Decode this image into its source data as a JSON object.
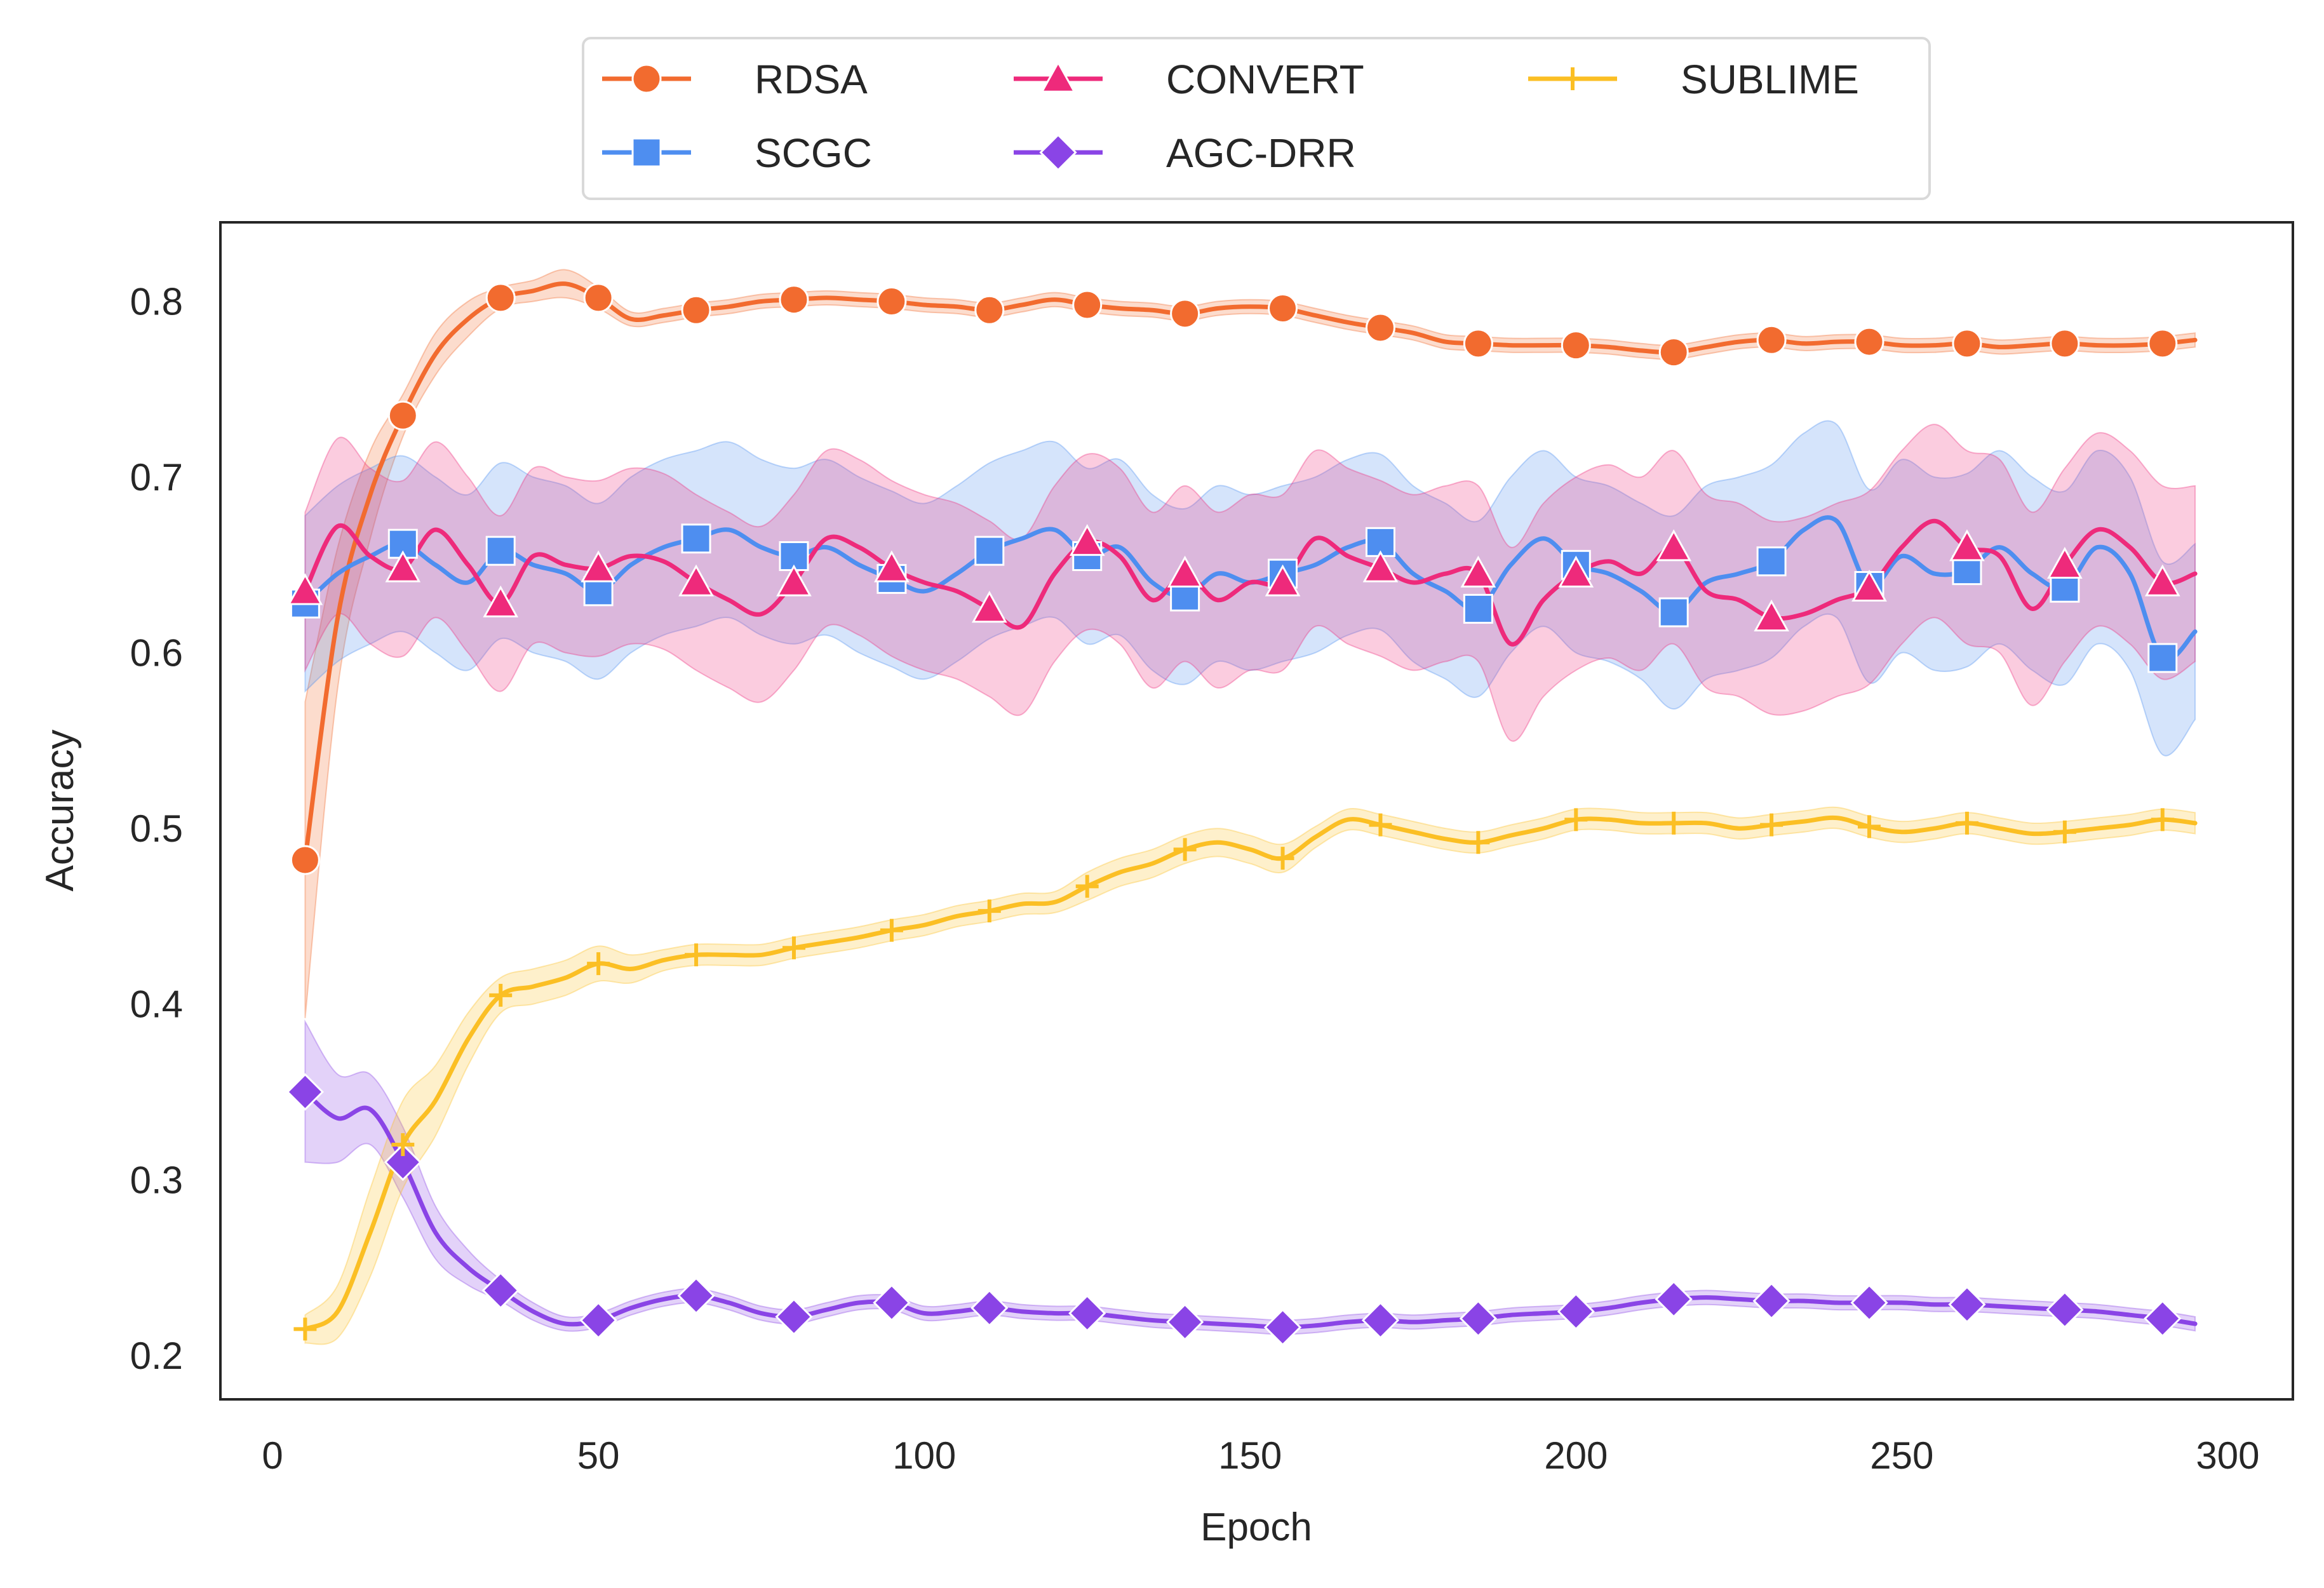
{
  "chart_data": {
    "type": "line",
    "title": "",
    "xlabel": "Epoch",
    "ylabel": "Accuracy",
    "xlim": [
      -8,
      310
    ],
    "ylim": [
      0.175,
      0.845
    ],
    "xticks": [
      0,
      50,
      100,
      150,
      200,
      250,
      300
    ],
    "yticks": [
      0.2,
      0.3,
      0.4,
      0.5,
      0.6,
      0.7,
      0.8
    ],
    "xtick_labels": [
      "0",
      "50",
      "100",
      "150",
      "200",
      "250",
      "300"
    ],
    "ytick_labels": [
      "0.2",
      "0.3",
      "0.4",
      "0.5",
      "0.6",
      "0.7",
      "0.8"
    ],
    "grid": false,
    "legend_position": "top-center-outside",
    "marker_x": [
      5,
      20,
      35,
      50,
      65,
      80,
      95,
      110,
      125,
      140,
      155,
      170,
      185,
      200,
      215,
      230,
      245,
      260,
      275,
      290
    ],
    "series": [
      {
        "name": "RDSA",
        "color": "#F26B2F",
        "marker": "circle",
        "x": [
          5,
          10,
          15,
          20,
          25,
          30,
          35,
          40,
          45,
          50,
          55,
          60,
          65,
          70,
          75,
          80,
          85,
          90,
          95,
          100,
          105,
          110,
          115,
          120,
          125,
          130,
          135,
          140,
          145,
          150,
          155,
          160,
          165,
          170,
          175,
          180,
          185,
          190,
          195,
          200,
          205,
          210,
          215,
          220,
          225,
          230,
          235,
          240,
          245,
          250,
          255,
          260,
          265,
          270,
          275,
          280,
          285,
          290,
          295
        ],
        "y": [
          0.482,
          0.62,
          0.69,
          0.735,
          0.77,
          0.79,
          0.802,
          0.806,
          0.81,
          0.802,
          0.79,
          0.792,
          0.795,
          0.797,
          0.8,
          0.801,
          0.802,
          0.801,
          0.8,
          0.798,
          0.797,
          0.795,
          0.798,
          0.801,
          0.798,
          0.796,
          0.795,
          0.793,
          0.796,
          0.797,
          0.796,
          0.792,
          0.788,
          0.785,
          0.782,
          0.777,
          0.776,
          0.775,
          0.775,
          0.775,
          0.774,
          0.772,
          0.771,
          0.774,
          0.777,
          0.778,
          0.776,
          0.777,
          0.777,
          0.775,
          0.775,
          0.776,
          0.774,
          0.775,
          0.776,
          0.775,
          0.775,
          0.776,
          0.778
        ],
        "band": [
          0.09,
          0.04,
          0.025,
          0.012,
          0.012,
          0.01,
          0.006,
          0.006,
          0.008,
          0.006,
          0.004,
          0.004,
          0.004,
          0.004,
          0.004,
          0.004,
          0.004,
          0.004,
          0.004,
          0.004,
          0.004,
          0.004,
          0.004,
          0.004,
          0.004,
          0.004,
          0.004,
          0.004,
          0.004,
          0.004,
          0.004,
          0.004,
          0.004,
          0.004,
          0.004,
          0.004,
          0.004,
          0.004,
          0.004,
          0.004,
          0.004,
          0.004,
          0.004,
          0.004,
          0.004,
          0.004,
          0.004,
          0.004,
          0.004,
          0.004,
          0.004,
          0.004,
          0.004,
          0.004,
          0.004,
          0.004,
          0.004,
          0.004,
          0.004
        ]
      },
      {
        "name": "SCGC",
        "color": "#4E8EF0",
        "marker": "square",
        "x": [
          5,
          10,
          15,
          20,
          25,
          30,
          35,
          40,
          45,
          50,
          55,
          60,
          65,
          70,
          75,
          80,
          85,
          90,
          95,
          100,
          105,
          110,
          115,
          120,
          125,
          130,
          135,
          140,
          145,
          150,
          155,
          160,
          165,
          170,
          175,
          180,
          185,
          190,
          195,
          200,
          205,
          210,
          215,
          220,
          225,
          230,
          235,
          240,
          245,
          250,
          255,
          260,
          265,
          270,
          275,
          280,
          285,
          290,
          295
        ],
        "y": [
          0.628,
          0.645,
          0.655,
          0.662,
          0.65,
          0.64,
          0.658,
          0.65,
          0.645,
          0.635,
          0.65,
          0.66,
          0.665,
          0.67,
          0.66,
          0.655,
          0.66,
          0.65,
          0.642,
          0.635,
          0.645,
          0.658,
          0.665,
          0.67,
          0.655,
          0.66,
          0.64,
          0.632,
          0.645,
          0.64,
          0.645,
          0.65,
          0.66,
          0.663,
          0.645,
          0.635,
          0.625,
          0.65,
          0.665,
          0.65,
          0.645,
          0.635,
          0.623,
          0.64,
          0.645,
          0.652,
          0.67,
          0.675,
          0.638,
          0.655,
          0.645,
          0.647,
          0.66,
          0.645,
          0.637,
          0.66,
          0.645,
          0.597,
          0.612
        ],
        "band": [
          0.05,
          0.05,
          0.05,
          0.05,
          0.05,
          0.05,
          0.05,
          0.05,
          0.05,
          0.05,
          0.05,
          0.05,
          0.05,
          0.05,
          0.05,
          0.05,
          0.05,
          0.05,
          0.05,
          0.05,
          0.05,
          0.05,
          0.05,
          0.05,
          0.05,
          0.05,
          0.05,
          0.05,
          0.05,
          0.05,
          0.05,
          0.05,
          0.05,
          0.05,
          0.05,
          0.05,
          0.05,
          0.05,
          0.05,
          0.05,
          0.05,
          0.05,
          0.055,
          0.055,
          0.055,
          0.055,
          0.055,
          0.055,
          0.055,
          0.055,
          0.055,
          0.055,
          0.055,
          0.055,
          0.055,
          0.055,
          0.055,
          0.055,
          0.05
        ]
      },
      {
        "name": "CONVERT",
        "color": "#EE2A7B",
        "marker": "triangle",
        "x": [
          5,
          10,
          15,
          20,
          25,
          30,
          35,
          40,
          45,
          50,
          55,
          60,
          65,
          70,
          75,
          80,
          85,
          90,
          95,
          100,
          105,
          110,
          115,
          120,
          125,
          130,
          135,
          140,
          145,
          150,
          155,
          160,
          165,
          170,
          175,
          180,
          185,
          190,
          195,
          200,
          205,
          210,
          215,
          220,
          225,
          230,
          235,
          240,
          245,
          250,
          255,
          260,
          265,
          270,
          275,
          280,
          285,
          290,
          295
        ],
        "y": [
          0.635,
          0.672,
          0.655,
          0.648,
          0.67,
          0.65,
          0.628,
          0.655,
          0.65,
          0.648,
          0.655,
          0.652,
          0.64,
          0.63,
          0.622,
          0.64,
          0.665,
          0.66,
          0.648,
          0.64,
          0.635,
          0.625,
          0.615,
          0.645,
          0.663,
          0.655,
          0.63,
          0.645,
          0.63,
          0.64,
          0.64,
          0.665,
          0.655,
          0.648,
          0.64,
          0.645,
          0.645,
          0.605,
          0.63,
          0.645,
          0.652,
          0.645,
          0.66,
          0.635,
          0.63,
          0.62,
          0.622,
          0.63,
          0.637,
          0.66,
          0.675,
          0.66,
          0.655,
          0.625,
          0.65,
          0.67,
          0.66,
          0.64,
          0.645
        ],
        "band": [
          0.045,
          0.05,
          0.05,
          0.05,
          0.05,
          0.05,
          0.05,
          0.05,
          0.05,
          0.05,
          0.05,
          0.05,
          0.05,
          0.05,
          0.05,
          0.05,
          0.05,
          0.05,
          0.05,
          0.05,
          0.05,
          0.05,
          0.05,
          0.05,
          0.05,
          0.05,
          0.05,
          0.05,
          0.05,
          0.05,
          0.05,
          0.05,
          0.05,
          0.05,
          0.05,
          0.05,
          0.05,
          0.055,
          0.055,
          0.055,
          0.055,
          0.055,
          0.055,
          0.055,
          0.055,
          0.055,
          0.055,
          0.055,
          0.055,
          0.055,
          0.055,
          0.055,
          0.055,
          0.055,
          0.055,
          0.055,
          0.055,
          0.055,
          0.05
        ]
      },
      {
        "name": "AGC-DRR",
        "color": "#8A44E6",
        "marker": "diamond",
        "x": [
          5,
          10,
          15,
          20,
          25,
          30,
          35,
          40,
          45,
          50,
          55,
          60,
          65,
          70,
          75,
          80,
          85,
          90,
          95,
          100,
          105,
          110,
          115,
          120,
          125,
          130,
          135,
          140,
          145,
          150,
          155,
          160,
          165,
          170,
          175,
          180,
          185,
          190,
          195,
          200,
          205,
          210,
          215,
          220,
          225,
          230,
          235,
          240,
          245,
          250,
          255,
          260,
          265,
          270,
          275,
          280,
          285,
          290,
          295
        ],
        "y": [
          0.35,
          0.335,
          0.34,
          0.31,
          0.27,
          0.25,
          0.237,
          0.225,
          0.218,
          0.22,
          0.227,
          0.232,
          0.234,
          0.23,
          0.224,
          0.222,
          0.226,
          0.23,
          0.23,
          0.224,
          0.225,
          0.227,
          0.225,
          0.224,
          0.224,
          0.222,
          0.22,
          0.219,
          0.218,
          0.217,
          0.216,
          0.217,
          0.219,
          0.22,
          0.219,
          0.22,
          0.221,
          0.223,
          0.224,
          0.225,
          0.227,
          0.23,
          0.232,
          0.233,
          0.232,
          0.231,
          0.231,
          0.23,
          0.23,
          0.23,
          0.229,
          0.229,
          0.228,
          0.227,
          0.226,
          0.225,
          0.223,
          0.221,
          0.218
        ],
        "band": [
          0.04,
          0.025,
          0.02,
          0.02,
          0.015,
          0.01,
          0.006,
          0.005,
          0.004,
          0.004,
          0.004,
          0.004,
          0.004,
          0.004,
          0.004,
          0.004,
          0.004,
          0.004,
          0.004,
          0.004,
          0.004,
          0.004,
          0.004,
          0.004,
          0.004,
          0.004,
          0.004,
          0.004,
          0.004,
          0.004,
          0.004,
          0.004,
          0.004,
          0.004,
          0.004,
          0.004,
          0.004,
          0.004,
          0.004,
          0.004,
          0.004,
          0.004,
          0.004,
          0.004,
          0.004,
          0.004,
          0.004,
          0.004,
          0.004,
          0.004,
          0.004,
          0.004,
          0.004,
          0.004,
          0.004,
          0.004,
          0.004,
          0.004,
          0.004
        ]
      },
      {
        "name": "SUBLIME",
        "color": "#FBBF24",
        "marker": "plus",
        "x": [
          5,
          10,
          15,
          20,
          25,
          30,
          35,
          40,
          45,
          50,
          55,
          60,
          65,
          70,
          75,
          80,
          85,
          90,
          95,
          100,
          105,
          110,
          115,
          120,
          125,
          130,
          135,
          140,
          145,
          150,
          155,
          160,
          165,
          170,
          175,
          180,
          185,
          190,
          195,
          200,
          205,
          210,
          215,
          220,
          225,
          230,
          235,
          240,
          245,
          250,
          255,
          260,
          265,
          270,
          275,
          280,
          285,
          290,
          295
        ],
        "y": [
          0.215,
          0.225,
          0.27,
          0.32,
          0.345,
          0.38,
          0.405,
          0.41,
          0.415,
          0.423,
          0.42,
          0.425,
          0.428,
          0.428,
          0.428,
          0.432,
          0.435,
          0.438,
          0.442,
          0.445,
          0.45,
          0.453,
          0.457,
          0.458,
          0.467,
          0.475,
          0.48,
          0.488,
          0.492,
          0.488,
          0.483,
          0.495,
          0.505,
          0.502,
          0.498,
          0.494,
          0.492,
          0.496,
          0.5,
          0.505,
          0.505,
          0.503,
          0.503,
          0.503,
          0.5,
          0.502,
          0.504,
          0.506,
          0.501,
          0.498,
          0.5,
          0.503,
          0.5,
          0.497,
          0.498,
          0.5,
          0.502,
          0.505,
          0.503
        ],
        "band": [
          0.008,
          0.015,
          0.025,
          0.025,
          0.02,
          0.015,
          0.01,
          0.01,
          0.01,
          0.01,
          0.008,
          0.006,
          0.006,
          0.006,
          0.006,
          0.006,
          0.006,
          0.006,
          0.006,
          0.006,
          0.006,
          0.006,
          0.006,
          0.006,
          0.008,
          0.008,
          0.008,
          0.008,
          0.008,
          0.008,
          0.008,
          0.006,
          0.006,
          0.006,
          0.006,
          0.006,
          0.006,
          0.006,
          0.006,
          0.006,
          0.006,
          0.006,
          0.006,
          0.006,
          0.006,
          0.006,
          0.006,
          0.006,
          0.006,
          0.006,
          0.006,
          0.006,
          0.006,
          0.006,
          0.006,
          0.006,
          0.006,
          0.006,
          0.006
        ]
      }
    ]
  }
}
